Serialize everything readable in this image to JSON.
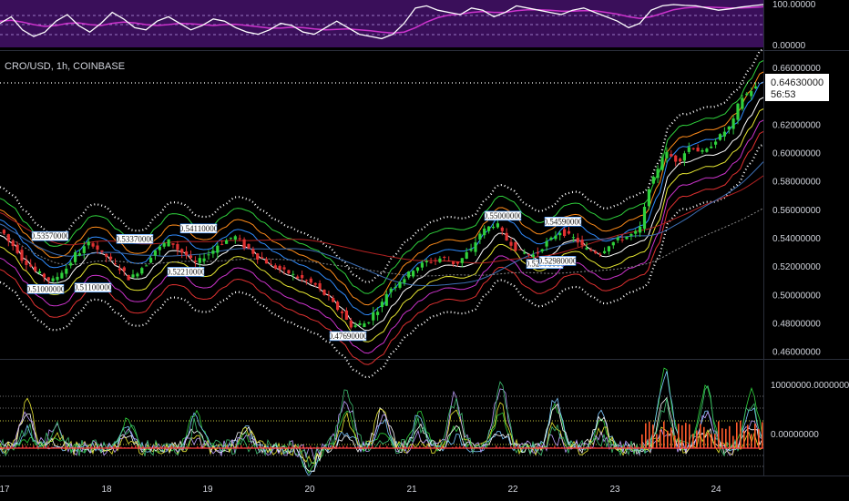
{
  "header": {
    "symbol": "CRO/USD, 1h, COINBASE"
  },
  "price_tag": {
    "price": "0.64630000",
    "countdown": "56:53"
  },
  "colors": {
    "background": "#000000",
    "up": "#2fd13c",
    "down": "#e03131",
    "osc_fill": "#3a0f5a",
    "osc_main": "#ffffff",
    "osc_signal": "#cc33cc"
  },
  "chart_data": [
    {
      "type": "line",
      "panel": "oscillator",
      "y_ticks": [
        "100.00000",
        "0.00000"
      ],
      "ylim": [
        0,
        100
      ],
      "series": [
        {
          "values": [
            55,
            70,
            40,
            25,
            35,
            60,
            75,
            50,
            35,
            55,
            80,
            65,
            45,
            40,
            60,
            70,
            55,
            40,
            50,
            65,
            60,
            45,
            35,
            30,
            40,
            55,
            50,
            35,
            30,
            45,
            60,
            45,
            30,
            25,
            20,
            30,
            55,
            90,
            95,
            85,
            80,
            75,
            90,
            85,
            70,
            80,
            95,
            90,
            85,
            80,
            75,
            85,
            90,
            80,
            70,
            60,
            45,
            55,
            85,
            95,
            98,
            96,
            95,
            90,
            85,
            88,
            92,
            95,
            98
          ]
        },
        {
          "values": [
            60,
            62,
            58,
            52,
            48,
            50,
            55,
            56,
            52,
            50,
            55,
            58,
            56,
            52,
            50,
            52,
            55,
            54,
            52,
            50,
            52,
            53,
            50,
            47,
            44,
            44,
            46,
            45,
            42,
            40,
            41,
            42,
            40,
            38,
            35,
            33,
            35,
            45,
            58,
            68,
            74,
            76,
            80,
            82,
            80,
            80,
            84,
            86,
            86,
            85,
            83,
            83,
            84,
            84,
            80,
            76,
            70,
            66,
            70,
            78,
            86,
            90,
            92,
            92,
            91,
            90,
            90,
            91,
            93
          ]
        }
      ]
    },
    {
      "type": "candlestick",
      "panel": "price",
      "y_ticks": [
        "0.66000000",
        "0.64000000",
        "0.62000000",
        "0.60000000",
        "0.58000000",
        "0.56000000",
        "0.54000000",
        "0.52000000",
        "0.50000000",
        "0.48000000",
        "0.46000000"
      ],
      "ylim": [
        0.455,
        0.668
      ],
      "x_ticks": [
        "17",
        "18",
        "19",
        "20",
        "21",
        "22",
        "23",
        "24"
      ],
      "current_price": 0.6463,
      "key_points": [
        0.546,
        0.535,
        0.523,
        0.515,
        0.51,
        0.518,
        0.53,
        0.537,
        0.528,
        0.52,
        0.512,
        0.52,
        0.532,
        0.538,
        0.53,
        0.522,
        0.529,
        0.537,
        0.541,
        0.533,
        0.526,
        0.52,
        0.516,
        0.512,
        0.508,
        0.5,
        0.49,
        0.478,
        0.48,
        0.49,
        0.505,
        0.512,
        0.52,
        0.524,
        0.526,
        0.522,
        0.53,
        0.545,
        0.55,
        0.538,
        0.53,
        0.528,
        0.537,
        0.545,
        0.54,
        0.532,
        0.53,
        0.537,
        0.541,
        0.544,
        0.58,
        0.6,
        0.595,
        0.605,
        0.6,
        0.61,
        0.618,
        0.64,
        0.646
      ],
      "peak_labels": [
        {
          "value": 0.5357,
          "text": "0.53570000"
        },
        {
          "value": 0.5337,
          "text": "0.53370000"
        },
        {
          "value": 0.5411,
          "text": "0.54110000"
        },
        {
          "value": 0.55,
          "text": "0.55000000"
        },
        {
          "value": 0.5459,
          "text": "0.54590000"
        }
      ],
      "trough_labels": [
        {
          "value": 0.51,
          "text": "0.51000000"
        },
        {
          "value": 0.511,
          "text": "0.51100000"
        },
        {
          "value": 0.5221,
          "text": "0.52210000"
        },
        {
          "value": 0.4769,
          "text": "0.47690000"
        },
        {
          "value": 0.5277,
          "text": "0.52770000"
        },
        {
          "value": 0.5298,
          "text": "0.52980000"
        }
      ]
    },
    {
      "type": "line",
      "panel": "volume-oscillator",
      "y_ticks": [
        "10000000.00000000",
        "0.00000000"
      ],
      "ylim": [
        -3500000,
        11500000
      ]
    }
  ]
}
